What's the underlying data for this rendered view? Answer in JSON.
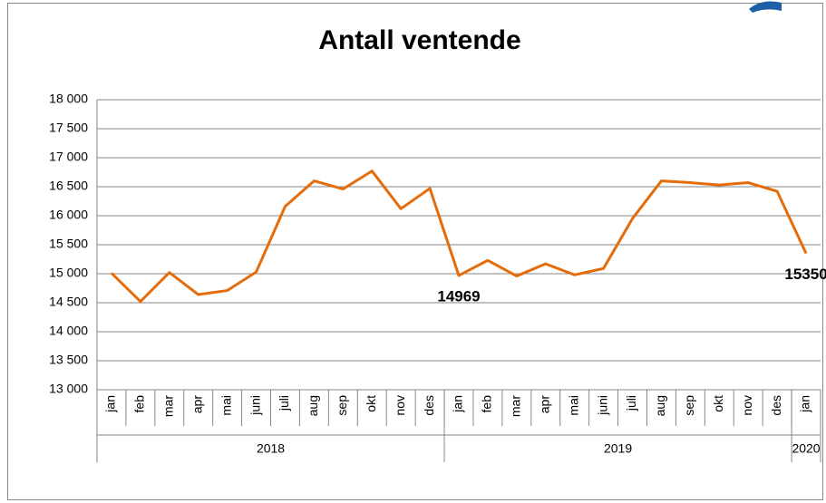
{
  "chart_data": {
    "type": "line",
    "title": "Antall ventende",
    "groups": [
      {
        "name": "2018",
        "categories": [
          "jan",
          "feb",
          "mar",
          "apr",
          "mai",
          "juni",
          "juli",
          "aug",
          "sep",
          "okt",
          "nov",
          "des"
        ]
      },
      {
        "name": "2019",
        "categories": [
          "jan",
          "feb",
          "mar",
          "apr",
          "mai",
          "juni",
          "juli",
          "aug",
          "sep",
          "okt",
          "nov",
          "des"
        ]
      },
      {
        "name": "2020",
        "categories": [
          "jan"
        ]
      }
    ],
    "values": [
      15010,
      14520,
      15020,
      14640,
      14710,
      15030,
      16160,
      16600,
      16460,
      16770,
      16120,
      16470,
      14969,
      15230,
      14960,
      15170,
      14980,
      15090,
      15950,
      16600,
      16570,
      16530,
      16570,
      16420,
      15350
    ],
    "value_labels": [
      null,
      null,
      null,
      null,
      null,
      null,
      null,
      null,
      null,
      null,
      null,
      null,
      "14969",
      null,
      null,
      null,
      null,
      null,
      null,
      null,
      null,
      null,
      null,
      null,
      "15350"
    ],
    "color": "#e46c0a",
    "ylim": [
      13000,
      18000
    ],
    "yticks": [
      {
        "value": 13000,
        "label": "13 000"
      },
      {
        "value": 13500,
        "label": "13 500"
      },
      {
        "value": 14000,
        "label": "14 000"
      },
      {
        "value": 14500,
        "label": "14 500"
      },
      {
        "value": 15000,
        "label": "15 000"
      },
      {
        "value": 15500,
        "label": "15 500"
      },
      {
        "value": 16000,
        "label": "16 000"
      },
      {
        "value": 16500,
        "label": "16 500"
      },
      {
        "value": 17000,
        "label": "17 000"
      },
      {
        "value": 17500,
        "label": "17 500"
      },
      {
        "value": 18000,
        "label": "18 000"
      }
    ],
    "grid": true
  }
}
